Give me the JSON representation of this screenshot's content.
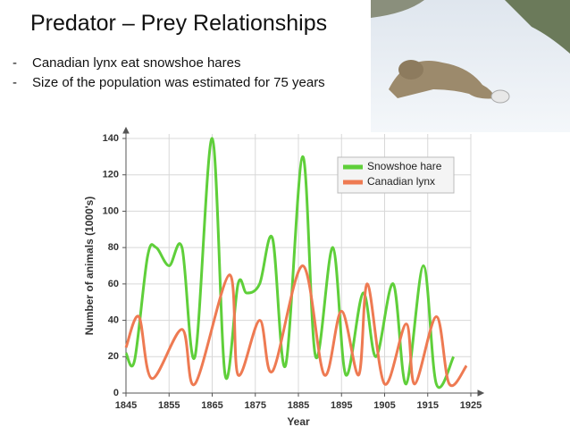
{
  "title": "Predator – Prey Relationships",
  "bullets": [
    "Canadian lynx eat snowshoe hares",
    "Size of the population was estimated for 75 years"
  ],
  "chart_data": {
    "type": "line",
    "x_label": "Year",
    "y_label": "Number of animals (1000's)",
    "xlim": [
      1845,
      1925
    ],
    "xticks": [
      1845,
      1855,
      1865,
      1875,
      1885,
      1895,
      1905,
      1915,
      1925
    ],
    "ylim": [
      0,
      140
    ],
    "yticks": [
      0,
      20,
      40,
      60,
      80,
      100,
      120,
      140
    ],
    "grid": true,
    "legend": "upper right",
    "series": [
      {
        "name": "Snowshoe hare",
        "color": "#5fcf3a",
        "x": [
          1845,
          1847,
          1850,
          1852,
          1855,
          1858,
          1861,
          1865,
          1868,
          1871,
          1873,
          1876,
          1879,
          1882,
          1886,
          1889,
          1893,
          1896,
          1900,
          1903,
          1907,
          1910,
          1914,
          1917,
          1921
        ],
        "values": [
          22,
          18,
          75,
          80,
          70,
          80,
          20,
          140,
          10,
          60,
          55,
          60,
          85,
          15,
          130,
          20,
          80,
          10,
          55,
          20,
          60,
          5,
          70,
          5,
          20
        ]
      },
      {
        "name": "Canadian lynx",
        "color": "#ee7a52",
        "x": [
          1845,
          1848,
          1851,
          1858,
          1861,
          1869,
          1871,
          1876,
          1879,
          1886,
          1891,
          1895,
          1899,
          1901,
          1905,
          1910,
          1912,
          1917,
          1920,
          1924
        ],
        "values": [
          25,
          42,
          8,
          35,
          5,
          65,
          10,
          40,
          12,
          70,
          10,
          45,
          10,
          60,
          5,
          38,
          5,
          42,
          5,
          15
        ]
      }
    ]
  }
}
